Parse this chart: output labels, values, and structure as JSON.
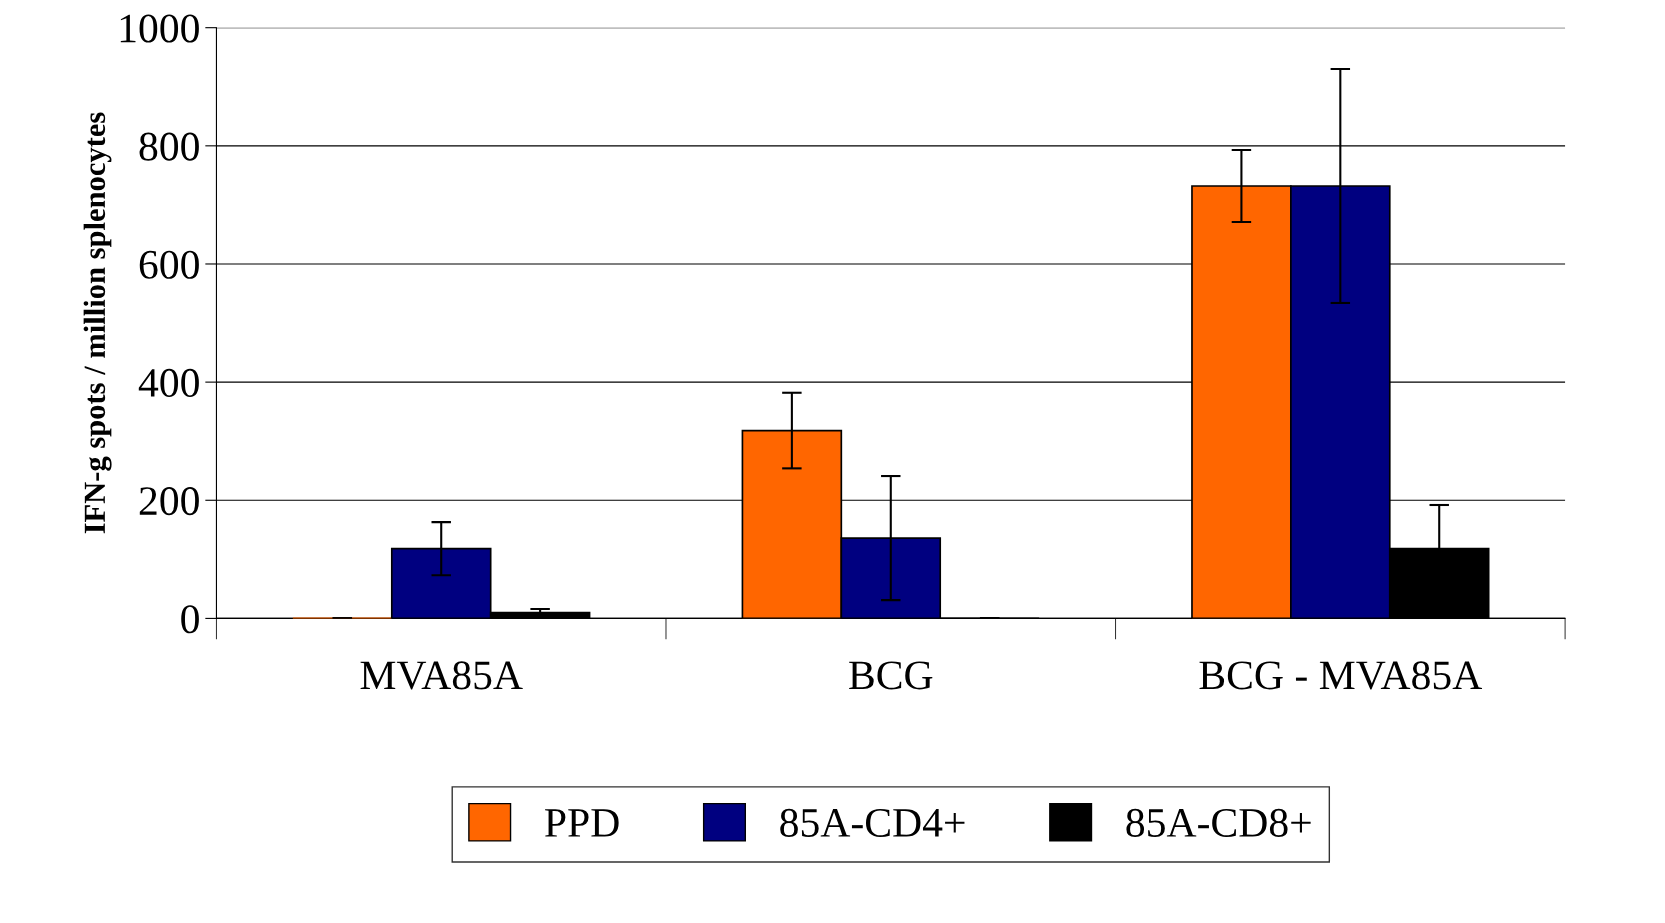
{
  "chart_data": {
    "type": "bar",
    "ylabel": "IFN-g spots / million splenocytes",
    "categories": [
      "MVA85A",
      "BCG",
      "BCG - MVA85A"
    ],
    "series": [
      {
        "name": "PPD",
        "color": "#ff6600",
        "values": [
          0,
          318,
          732
        ],
        "errors": [
          0,
          64,
          61
        ]
      },
      {
        "name": "85A-CD4+",
        "color": "#000080",
        "values": [
          118,
          136,
          732
        ],
        "errors": [
          45,
          105,
          198
        ]
      },
      {
        "name": "85A-CD8+",
        "color": "#000000",
        "values": [
          10,
          0,
          118
        ],
        "errors": [
          6,
          0,
          74
        ]
      }
    ],
    "ylim": [
      0,
      1000
    ],
    "yticks": [
      0,
      200,
      400,
      600,
      800,
      1000
    ],
    "grid": "y",
    "legend": "bottom"
  }
}
